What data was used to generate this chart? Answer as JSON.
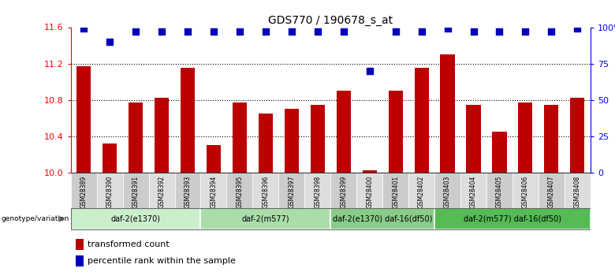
{
  "title": "GDS770 / 190678_s_at",
  "samples": [
    "GSM28389",
    "GSM28390",
    "GSM28391",
    "GSM28392",
    "GSM28393",
    "GSM28394",
    "GSM28395",
    "GSM28396",
    "GSM28397",
    "GSM28398",
    "GSM28399",
    "GSM28400",
    "GSM28401",
    "GSM28402",
    "GSM28403",
    "GSM28404",
    "GSM28405",
    "GSM28406",
    "GSM28407",
    "GSM28408"
  ],
  "bar_values": [
    11.17,
    10.32,
    10.77,
    10.82,
    11.15,
    10.3,
    10.77,
    10.65,
    10.7,
    10.75,
    10.9,
    10.03,
    10.9,
    11.15,
    11.3,
    10.75,
    10.45,
    10.77,
    10.75,
    10.82
  ],
  "percentile_values": [
    99,
    90,
    97,
    97,
    97,
    97,
    97,
    97,
    97,
    97,
    97,
    70,
    97,
    97,
    99,
    97,
    97,
    97,
    97,
    99
  ],
  "bar_color": "#bb0000",
  "dot_color": "#0000bb",
  "ylim_left": [
    10.0,
    11.6
  ],
  "ylim_right": [
    0,
    100
  ],
  "yticks_left": [
    10.0,
    10.4,
    10.8,
    11.2,
    11.6
  ],
  "yticks_right": [
    0,
    25,
    50,
    75,
    100
  ],
  "yticklabels_right": [
    "0",
    "25",
    "50",
    "75",
    "100%"
  ],
  "hlines": [
    10.4,
    10.8,
    11.2
  ],
  "groups": [
    {
      "label": "daf-2(e1370)",
      "start": 0,
      "end": 4,
      "color": "#cceecc"
    },
    {
      "label": "daf-2(m577)",
      "start": 5,
      "end": 9,
      "color": "#aaddaa"
    },
    {
      "label": "daf-2(e1370) daf-16(df50)",
      "start": 10,
      "end": 13,
      "color": "#88cc88"
    },
    {
      "label": "daf-2(m577) daf-16(df50)",
      "start": 14,
      "end": 19,
      "color": "#55bb55"
    }
  ],
  "genotype_label": "genotype/variation",
  "legend_bar_label": "transformed count",
  "legend_dot_label": "percentile rank within the sample",
  "bar_width": 0.55,
  "dot_size": 28,
  "dot_marker": "s",
  "tick_bg_color": "#cccccc",
  "tick_bg_color2": "#dddddd"
}
